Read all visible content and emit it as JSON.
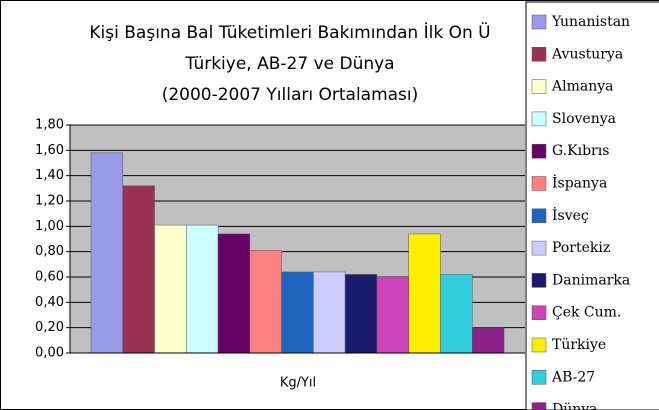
{
  "chart_data": {
    "type": "bar",
    "title": [
      "Kişi Başına Bal Tüketimleri Bakımından İlk On Ü",
      "Türkiye, AB-27 ve Dünya",
      "(2000-2007 Yılları Ortalaması)"
    ],
    "x_label": "Kg/Yıl",
    "categories": [
      "Yunanistan",
      "Avusturya",
      "Almanya",
      "Slovenya",
      "G.Kıbrıs",
      "İspanya",
      "İsveç",
      "Portekiz",
      "Danimarka",
      "Çek Cum.",
      "Türkiye",
      "AB-27",
      "Dünya"
    ],
    "values": [
      1.58,
      1.32,
      1.01,
      1.01,
      0.94,
      0.81,
      0.64,
      0.64,
      0.62,
      0.6,
      0.94,
      0.62,
      0.2
    ],
    "colors": [
      "#9a9aea",
      "#993355",
      "#ffffcc",
      "#ccffff",
      "#660066",
      "#ff8080",
      "#1f66c0",
      "#ccccff",
      "#1a1a6e",
      "#cc44bb",
      "#ffee00",
      "#33ccdd",
      "#882288"
    ],
    "ylim": [
      0,
      1.8
    ],
    "yticks": [
      {
        "value": 0,
        "label": "0,00"
      },
      {
        "value": 0.2,
        "label": "0,20"
      },
      {
        "value": 0.4,
        "label": "0,40"
      },
      {
        "value": 0.6,
        "label": "0,60"
      },
      {
        "value": 0.8,
        "label": "0,80"
      },
      {
        "value": 1.0,
        "label": "1,00"
      },
      {
        "value": 1.2,
        "label": "1,20"
      },
      {
        "value": 1.4,
        "label": "1,40"
      },
      {
        "value": 1.6,
        "label": "1,60"
      },
      {
        "value": 1.8,
        "label": "1,80"
      }
    ],
    "grid": true,
    "legend": "right"
  }
}
